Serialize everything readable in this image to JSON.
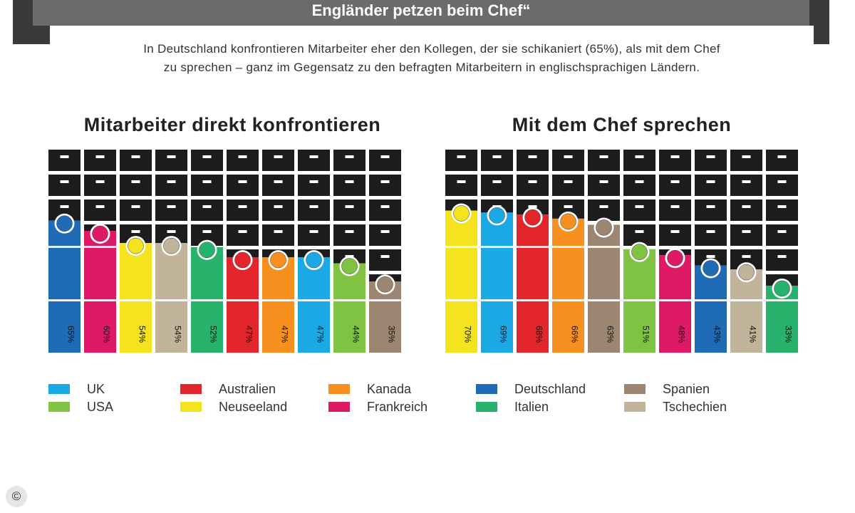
{
  "header": {
    "title": "Engländer petzen beim Chef“",
    "intro_line1": "In Deutschland konfrontieren Mitarbeiter eher den Kollegen, der sie schikaniert (65%), als mit dem Chef",
    "intro_line2": "zu sprechen – ganz im Gegensatz zu den befragten Mitarbeitern in englischsprachigen Ländern."
  },
  "colors": {
    "UK": "#1ba9e6",
    "USA": "#80c242",
    "Australien": "#e3262b",
    "Neuseeland": "#f4e31d",
    "Kanada": "#f7901e",
    "Frankreich": "#de1a67",
    "Deutschland": "#1f6bb6",
    "Italien": "#27b36b",
    "Spanien": "#9c8672",
    "Tschechien": "#c2b49a",
    "cabinet": "#1c1c1c"
  },
  "chart_data": [
    {
      "type": "bar",
      "title": "Mitarbeiter direkt konfrontieren",
      "categories": [
        "Deutschland",
        "Frankreich",
        "Neuseeland",
        "Tschechien",
        "Italien",
        "Australien",
        "Kanada",
        "UK",
        "USA",
        "Spanien"
      ],
      "values": [
        65,
        60,
        54,
        54,
        52,
        47,
        47,
        47,
        44,
        35
      ],
      "labels": [
        "65%",
        "60%",
        "54%",
        "54%",
        "52%",
        "47%",
        "47%",
        "47%",
        "44%",
        "35%"
      ],
      "ylim": [
        0,
        100
      ]
    },
    {
      "type": "bar",
      "title": "Mit dem Chef sprechen",
      "categories": [
        "Neuseeland",
        "UK",
        "Australien",
        "Kanada",
        "Spanien",
        "USA",
        "Frankreich",
        "Deutschland",
        "Tschechien",
        "Italien"
      ],
      "values": [
        70,
        69,
        68,
        66,
        63,
        51,
        48,
        43,
        41,
        33
      ],
      "labels": [
        "70%",
        "69%",
        "68%",
        "66%",
        "63%",
        "51%",
        "48%",
        "43%",
        "41%",
        "33%"
      ],
      "ylim": [
        0,
        100
      ]
    }
  ],
  "legend": [
    {
      "label": "UK",
      "key": "UK"
    },
    {
      "label": "USA",
      "key": "USA"
    },
    {
      "label": "Australien",
      "key": "Australien"
    },
    {
      "label": "Neuseeland",
      "key": "Neuseeland"
    },
    {
      "label": "Kanada",
      "key": "Kanada"
    },
    {
      "label": "Frankreich",
      "key": "Frankreich"
    },
    {
      "label": "Deutschland",
      "key": "Deutschland"
    },
    {
      "label": "Italien",
      "key": "Italien"
    },
    {
      "label": "Spanien",
      "key": "Spanien"
    },
    {
      "label": "Tschechien",
      "key": "Tschechien"
    }
  ],
  "footer": {
    "copyright": "©"
  }
}
